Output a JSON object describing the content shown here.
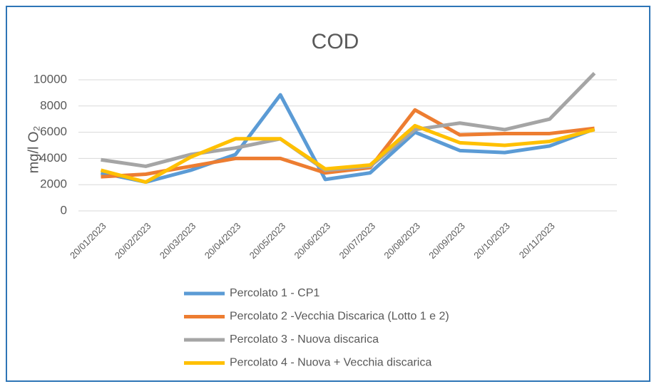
{
  "chart_data": {
    "type": "line",
    "title": "COD",
    "y_label": "mg/l O₂",
    "categories": [
      "20/01/2023",
      "20/02/2023",
      "20/03/2023",
      "20/04/2023",
      "20/05/2023",
      "20/06/2023",
      "20/07/2023",
      "20/08/2023",
      "20/09/2023",
      "20/10/2023",
      "20/11/2023",
      null
    ],
    "series": [
      {
        "name": "Percolato 1 - CP1",
        "color": "#5b9bd5",
        "values": [
          2900,
          2200,
          3100,
          4300,
          8850,
          2400,
          2900,
          6000,
          4600,
          4450,
          4950,
          6250
        ]
      },
      {
        "name": "Percolato 2 -Vecchia Discarica (Lotto 1 e 2)",
        "color": "#ed7d31",
        "values": [
          2600,
          2800,
          3400,
          4000,
          4000,
          2900,
          3300,
          7700,
          5800,
          5900,
          5900,
          6300
        ]
      },
      {
        "name": "Percolato 3 - Nuova discarica",
        "color": "#a5a5a5",
        "values": [
          3900,
          3400,
          4300,
          4800,
          5500,
          3100,
          3400,
          6200,
          6700,
          6200,
          7000,
          10500
        ]
      },
      {
        "name": "Percolato 4 - Nuova + Vecchia discarica",
        "color": "#ffc000",
        "values": [
          3100,
          2200,
          4100,
          5500,
          5500,
          3200,
          3500,
          6500,
          5200,
          5000,
          5300,
          6200
        ]
      }
    ],
    "ylim": [
      0,
      10000
    ],
    "yticks": [
      0,
      2000,
      4000,
      6000,
      8000,
      10000
    ],
    "grid": true,
    "legend": "bottom"
  }
}
